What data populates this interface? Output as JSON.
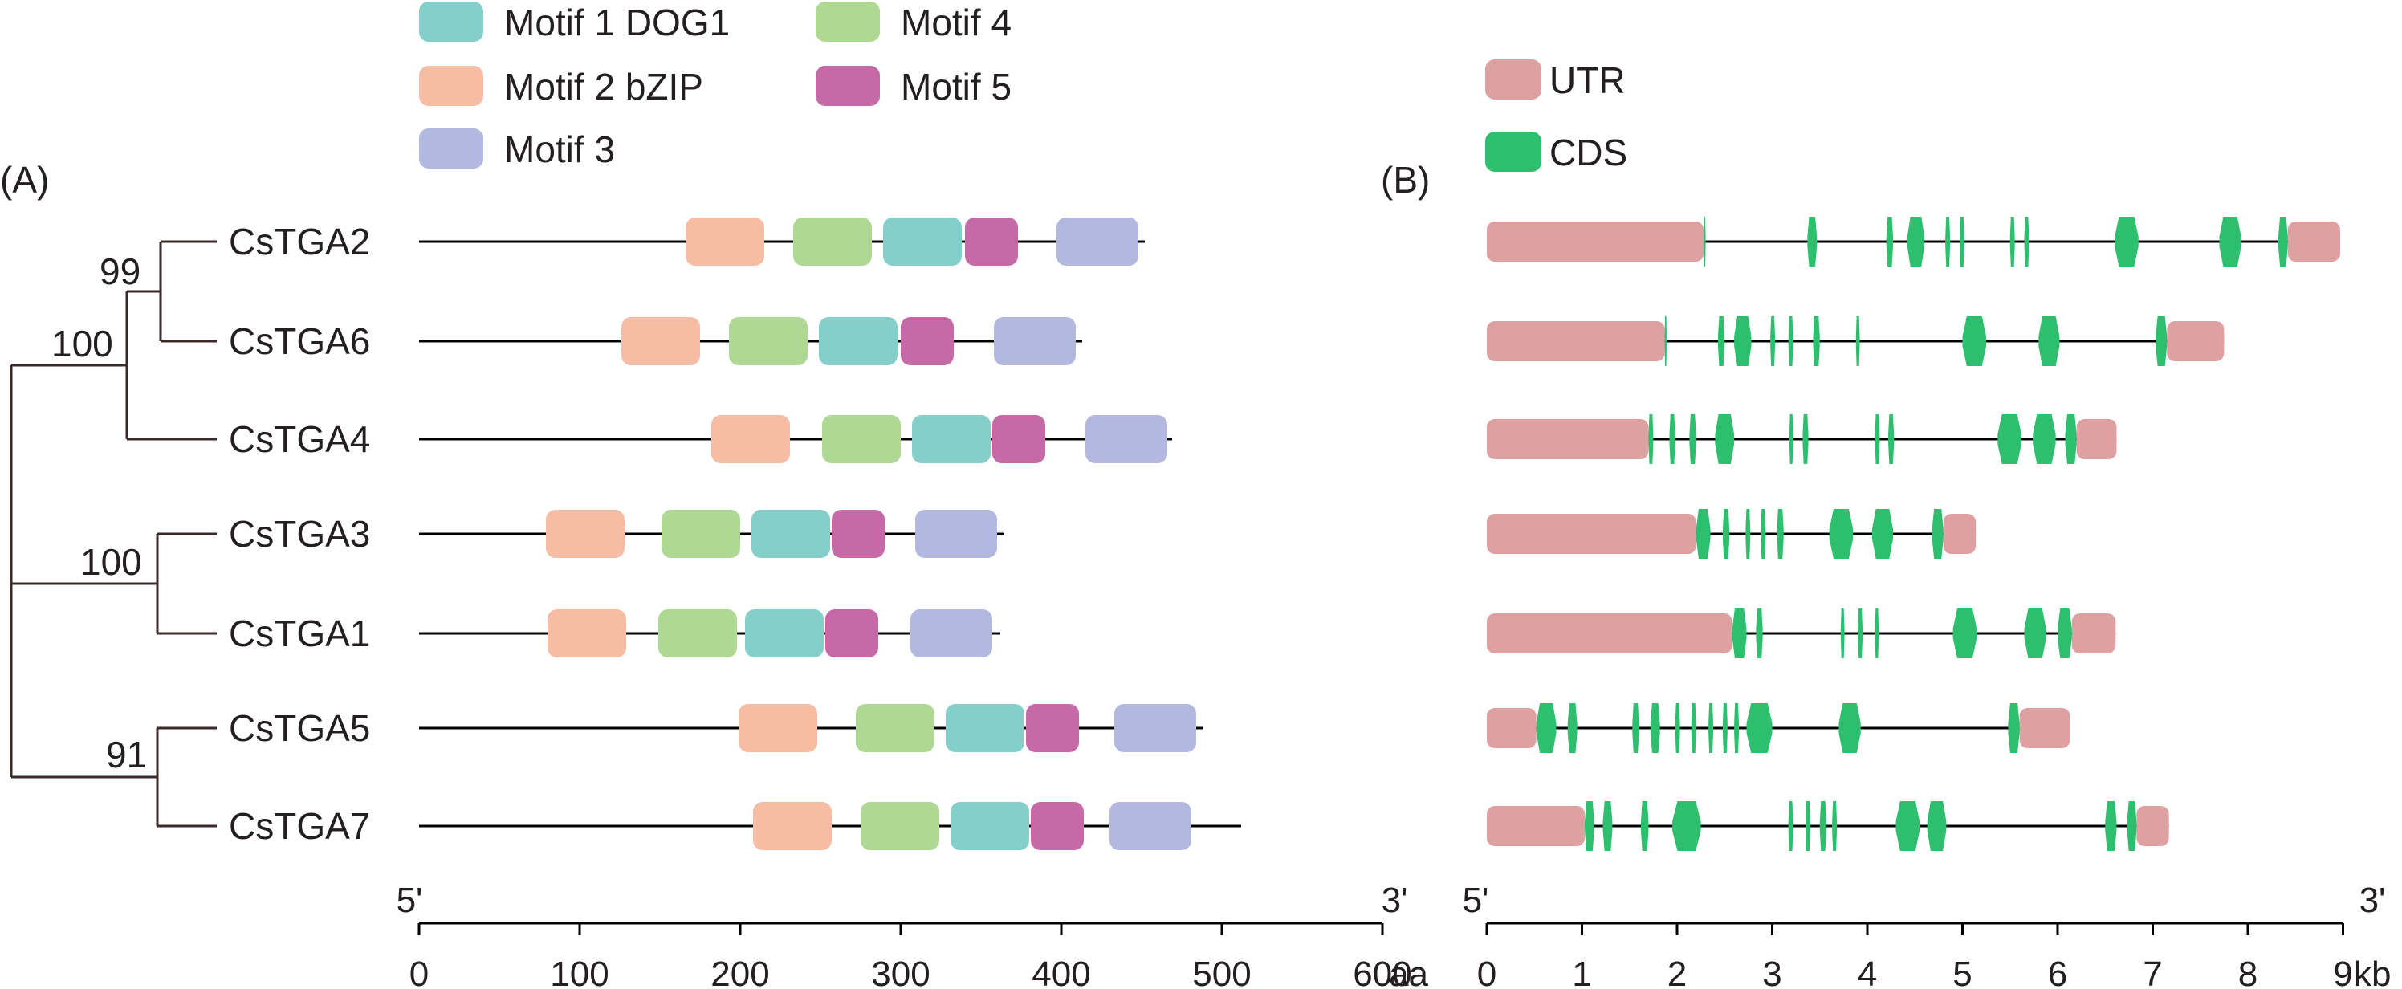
{
  "panel_a_label": "(A)",
  "panel_b_label": "(B)",
  "motif_legend": [
    {
      "label": "Motif 1 DOG1",
      "color": "#84cfca"
    },
    {
      "label": "Motif 2 bZIP",
      "color": "#f7bca4"
    },
    {
      "label": "Motif 3",
      "color": "#b3b8e0"
    },
    {
      "label": "Motif 4",
      "color": "#afd895"
    },
    {
      "label": "Motif 5",
      "color": "#c669a7"
    }
  ],
  "structure_legend": [
    {
      "label": "UTR",
      "color": "#dea0a1"
    },
    {
      "label": "CDS",
      "color": "#2dbf6e"
    }
  ],
  "genes": [
    "CsTGA2",
    "CsTGA6",
    "CsTGA4",
    "CsTGA3",
    "CsTGA1",
    "CsTGA5",
    "CsTGA7"
  ],
  "bootstrap_values": [
    "99",
    "100",
    "100",
    "91"
  ],
  "axis_a": {
    "end5": "5'",
    "end3": "3'",
    "ticks": [
      "0",
      "100",
      "200",
      "300",
      "400",
      "500",
      "600"
    ],
    "unit": "aa",
    "max": 600
  },
  "axis_b": {
    "end5": "5'",
    "end3": "3'",
    "ticks": [
      "0",
      "1",
      "2",
      "3",
      "4",
      "5",
      "6",
      "7",
      "8",
      "9"
    ],
    "unit": "kb",
    "max": 9
  },
  "proteins": [
    {
      "name": "CsTGA2",
      "length": 452,
      "motifs": [
        {
          "m": 2,
          "s": 166,
          "e": 215
        },
        {
          "m": 4,
          "s": 233,
          "e": 282
        },
        {
          "m": 1,
          "s": 289,
          "e": 338
        },
        {
          "m": 5,
          "s": 340,
          "e": 373
        },
        {
          "m": 3,
          "s": 397,
          "e": 448
        }
      ]
    },
    {
      "name": "CsTGA6",
      "length": 413,
      "motifs": [
        {
          "m": 2,
          "s": 126,
          "e": 175
        },
        {
          "m": 4,
          "s": 193,
          "e": 242
        },
        {
          "m": 1,
          "s": 249,
          "e": 298
        },
        {
          "m": 5,
          "s": 300,
          "e": 333
        },
        {
          "m": 3,
          "s": 358,
          "e": 409
        }
      ]
    },
    {
      "name": "CsTGA4",
      "length": 469,
      "motifs": [
        {
          "m": 2,
          "s": 182,
          "e": 231
        },
        {
          "m": 4,
          "s": 251,
          "e": 300
        },
        {
          "m": 1,
          "s": 307,
          "e": 356
        },
        {
          "m": 5,
          "s": 357,
          "e": 390
        },
        {
          "m": 3,
          "s": 415,
          "e": 466
        }
      ]
    },
    {
      "name": "CsTGA3",
      "length": 364,
      "motifs": [
        {
          "m": 2,
          "s": 79,
          "e": 128
        },
        {
          "m": 4,
          "s": 151,
          "e": 200
        },
        {
          "m": 1,
          "s": 207,
          "e": 256
        },
        {
          "m": 5,
          "s": 257,
          "e": 290
        },
        {
          "m": 3,
          "s": 309,
          "e": 360
        }
      ]
    },
    {
      "name": "CsTGA1",
      "length": 362,
      "motifs": [
        {
          "m": 2,
          "s": 80,
          "e": 129
        },
        {
          "m": 4,
          "s": 149,
          "e": 198
        },
        {
          "m": 1,
          "s": 203,
          "e": 252
        },
        {
          "m": 5,
          "s": 253,
          "e": 286
        },
        {
          "m": 3,
          "s": 306,
          "e": 357
        }
      ]
    },
    {
      "name": "CsTGA5",
      "length": 488,
      "motifs": [
        {
          "m": 2,
          "s": 199,
          "e": 248
        },
        {
          "m": 4,
          "s": 272,
          "e": 321
        },
        {
          "m": 1,
          "s": 328,
          "e": 377
        },
        {
          "m": 5,
          "s": 378,
          "e": 411
        },
        {
          "m": 3,
          "s": 433,
          "e": 484
        }
      ]
    },
    {
      "name": "CsTGA7",
      "length": 512,
      "motifs": [
        {
          "m": 2,
          "s": 208,
          "e": 257
        },
        {
          "m": 4,
          "s": 275,
          "e": 324
        },
        {
          "m": 1,
          "s": 331,
          "e": 380
        },
        {
          "m": 5,
          "s": 381,
          "e": 414
        },
        {
          "m": 3,
          "s": 430,
          "e": 481
        }
      ]
    }
  ],
  "gene_structures": [
    {
      "name": "CsTGA2",
      "length": 8.97,
      "utr": [
        [
          0,
          2.28
        ],
        [
          8.42,
          8.97
        ]
      ],
      "cds": [
        [
          2.28,
          2.3
        ],
        [
          3.37,
          3.47
        ],
        [
          4.2,
          4.27
        ],
        [
          4.42,
          4.6
        ],
        [
          4.82,
          4.87
        ],
        [
          4.97,
          5.02
        ],
        [
          5.5,
          5.55
        ],
        [
          5.65,
          5.7
        ],
        [
          6.6,
          6.85
        ],
        [
          7.7,
          7.93
        ],
        [
          8.32,
          8.42
        ]
      ]
    },
    {
      "name": "CsTGA6",
      "length": 7.75,
      "utr": [
        [
          0,
          1.87
        ],
        [
          7.15,
          7.75
        ]
      ],
      "cds": [
        [
          1.87,
          1.89
        ],
        [
          2.43,
          2.5
        ],
        [
          2.6,
          2.78
        ],
        [
          2.98,
          3.03
        ],
        [
          3.17,
          3.22
        ],
        [
          3.43,
          3.5
        ],
        [
          3.88,
          3.92
        ],
        [
          5.0,
          5.25
        ],
        [
          5.8,
          6.02
        ],
        [
          7.03,
          7.15
        ]
      ]
    },
    {
      "name": "CsTGA4",
      "length": 6.62,
      "utr": [
        [
          0,
          1.7
        ],
        [
          6.2,
          6.62
        ]
      ],
      "cds": [
        [
          1.7,
          1.75
        ],
        [
          1.92,
          1.98
        ],
        [
          2.13,
          2.2
        ],
        [
          2.4,
          2.6
        ],
        [
          3.18,
          3.22
        ],
        [
          3.32,
          3.38
        ],
        [
          4.08,
          4.13
        ],
        [
          4.22,
          4.28
        ],
        [
          5.37,
          5.62
        ],
        [
          5.74,
          5.98
        ],
        [
          6.08,
          6.2
        ]
      ]
    },
    {
      "name": "CsTGA3",
      "length": 5.14,
      "utr": [
        [
          0,
          2.2
        ],
        [
          4.8,
          5.14
        ]
      ],
      "cds": [
        [
          2.2,
          2.35
        ],
        [
          2.48,
          2.55
        ],
        [
          2.72,
          2.77
        ],
        [
          2.88,
          2.93
        ],
        [
          3.05,
          3.12
        ],
        [
          3.6,
          3.85
        ],
        [
          4.05,
          4.27
        ],
        [
          4.68,
          4.8
        ]
      ]
    },
    {
      "name": "CsTGA1",
      "length": 6.61,
      "utr": [
        [
          0,
          2.58
        ],
        [
          6.15,
          6.61
        ]
      ],
      "cds": [
        [
          2.58,
          2.73
        ],
        [
          2.83,
          2.9
        ],
        [
          3.72,
          3.76
        ],
        [
          3.9,
          3.95
        ],
        [
          4.08,
          4.12
        ],
        [
          4.9,
          5.15
        ],
        [
          5.65,
          5.88
        ],
        [
          6.0,
          6.15
        ]
      ]
    },
    {
      "name": "CsTGA5",
      "length": 6.13,
      "utr": [
        [
          0,
          0.52
        ],
        [
          5.6,
          6.13
        ]
      ],
      "cds": [
        [
          0.52,
          0.73
        ],
        [
          0.85,
          0.95
        ],
        [
          1.53,
          1.6
        ],
        [
          1.72,
          1.82
        ],
        [
          1.98,
          2.03
        ],
        [
          2.15,
          2.2
        ],
        [
          2.33,
          2.38
        ],
        [
          2.48,
          2.53
        ],
        [
          2.6,
          2.65
        ],
        [
          2.73,
          3.0
        ],
        [
          3.7,
          3.93
        ],
        [
          5.48,
          5.6
        ]
      ]
    },
    {
      "name": "CsTGA7",
      "length": 7.17,
      "utr": [
        [
          0,
          1.03
        ],
        [
          6.83,
          7.17
        ]
      ],
      "cds": [
        [
          1.03,
          1.13
        ],
        [
          1.22,
          1.32
        ],
        [
          1.62,
          1.7
        ],
        [
          1.95,
          2.25
        ],
        [
          3.17,
          3.22
        ],
        [
          3.35,
          3.4
        ],
        [
          3.5,
          3.57
        ],
        [
          3.63,
          3.68
        ],
        [
          4.3,
          4.55
        ],
        [
          4.63,
          4.83
        ],
        [
          6.5,
          6.62
        ],
        [
          6.73,
          6.83
        ]
      ]
    }
  ]
}
